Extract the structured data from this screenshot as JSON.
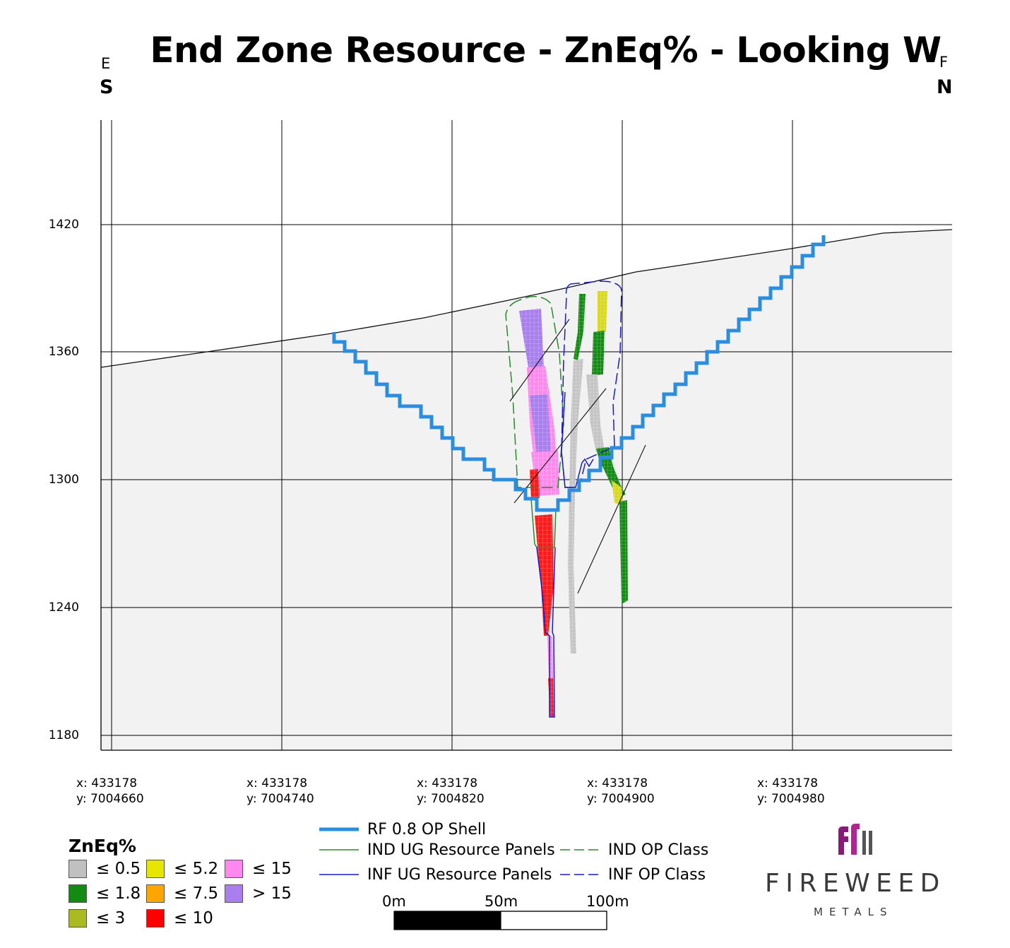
{
  "title": "End Zone Resource - ZnEq% - Looking W",
  "left_direction": {
    "small": "E",
    "big": "S"
  },
  "right_direction": {
    "small": "F",
    "big": "N"
  },
  "y_ticks": [
    "1420",
    "1360",
    "1300",
    "1240",
    "1180"
  ],
  "x_ticks": [
    {
      "x": "x: 433178",
      "y": "y: 7004660"
    },
    {
      "x": "x: 433178",
      "y": "y: 7004740"
    },
    {
      "x": "x: 433178",
      "y": "y: 7004820"
    },
    {
      "x": "x: 433178",
      "y": "y: 7004900"
    },
    {
      "x": "x: 433178",
      "y": "y: 7004980"
    }
  ],
  "legend": {
    "title": "ZnEq%",
    "items": [
      {
        "label": "≤ 0.5",
        "color": "#c0c0c0"
      },
      {
        "label": "≤ 1.8",
        "color": "#138a13"
      },
      {
        "label": "≤ 3",
        "color": "#aabb22"
      },
      {
        "label": "≤ 5.2",
        "color": "#e6e600"
      },
      {
        "label": "≤ 7.5",
        "color": "#ffa500"
      },
      {
        "label": "≤ 10",
        "color": "#ff0000"
      },
      {
        "label": "≤ 15",
        "color": "#ff88ee"
      },
      {
        "label": "> 15",
        "color": "#a97ff0"
      }
    ]
  },
  "line_legend": [
    {
      "label": "RF 0.8 OP Shell",
      "color": "#2a8de0",
      "style": "solid-thick"
    },
    {
      "label": "IND UG Resource Panels",
      "color": "#2a8a2a",
      "style": "solid"
    },
    {
      "label": "INF UG Resource Panels",
      "color": "#1a1acc",
      "style": "solid"
    },
    {
      "label": "IND OP Class",
      "color": "#2a8a2a",
      "style": "dashed"
    },
    {
      "label": "INF OP Class",
      "color": "#1a1acc",
      "style": "dashed"
    }
  ],
  "scale_bar": {
    "labels": [
      "0m",
      "50m",
      "100m"
    ]
  },
  "logo": {
    "word": "FIREWEED",
    "sub": "METALS"
  },
  "colors": {
    "op_shell": "#2a8de0",
    "ground": "#f2f2f2"
  }
}
